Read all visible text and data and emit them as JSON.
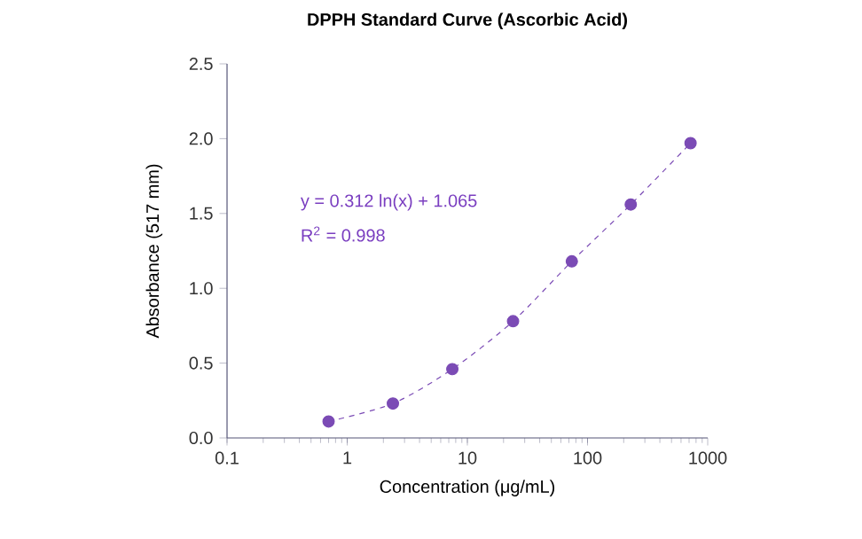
{
  "chart_data": {
    "type": "line",
    "title": "DPPH Standard Curve (Ascorbic Acid)",
    "xlabel": "Concentration (μg/mL)",
    "ylabel": "Absorbance (517 mm)",
    "x": [
      0.7,
      2.4,
      7.5,
      24,
      74,
      229,
      720
    ],
    "series": [
      {
        "color": "#7b4bb5",
        "values": [
          0.11,
          0.23,
          0.46,
          0.78,
          1.18,
          1.56,
          1.97
        ]
      }
    ],
    "marker": "circle",
    "line_style": "dashed",
    "log": "x",
    "xlim": [
      0.1,
      1000
    ],
    "xticks": [
      0.1,
      1,
      10,
      100,
      1000
    ],
    "ylim": [
      0,
      2.5
    ],
    "yticks": [
      {
        "value": 0,
        "label": "0.0"
      },
      0.5,
      {
        "value": 1,
        "label": "1.0"
      },
      1.5,
      {
        "value": 2,
        "label": "2.0"
      },
      2.5
    ],
    "annotations": [
      {
        "text": "y = 0.312 ln(x) + 1.065"
      },
      {
        "text": "R$^{2}$ = 0.998"
      }
    ]
  }
}
